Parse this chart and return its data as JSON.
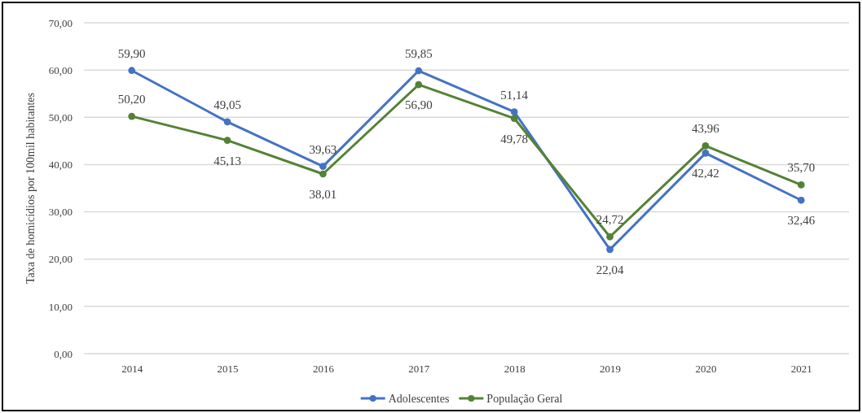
{
  "chart_data": {
    "type": "line",
    "ylabel": "Taxa de homicídios por 100mil habitantes",
    "categories": [
      "2014",
      "2015",
      "2016",
      "2017",
      "2018",
      "2019",
      "2020",
      "2021"
    ],
    "ylim": [
      0,
      70
    ],
    "yticks": [
      {
        "value": 0,
        "label": "0,00"
      },
      {
        "value": 10,
        "label": "10,00"
      },
      {
        "value": 20,
        "label": "20,00"
      },
      {
        "value": 30,
        "label": "30,00"
      },
      {
        "value": 40,
        "label": "40,00"
      },
      {
        "value": 50,
        "label": "50,00"
      },
      {
        "value": 60,
        "label": "60,00"
      },
      {
        "value": 70,
        "label": "70,00"
      }
    ],
    "grid": "y",
    "legend": "bottom",
    "marker": "circle",
    "line_style": "solid",
    "series": [
      {
        "name": "Adolescentes",
        "color": "#4472c4",
        "values": [
          59.9,
          49.05,
          39.63,
          59.85,
          51.14,
          22.04,
          42.42,
          32.46
        ],
        "value_labels": [
          "59,90",
          "49,05",
          "39,63",
          "59,85",
          "51,14",
          "22,04",
          "42,42",
          "32,46"
        ]
      },
      {
        "name": "População Geral",
        "color": "#548235",
        "values": [
          50.2,
          45.13,
          38.01,
          56.9,
          49.78,
          24.72,
          43.96,
          35.7
        ],
        "value_labels": [
          "50,20",
          "45,13",
          "38,01",
          "56,90",
          "49,78",
          "24,72",
          "43,96",
          "35,70"
        ]
      }
    ]
  }
}
